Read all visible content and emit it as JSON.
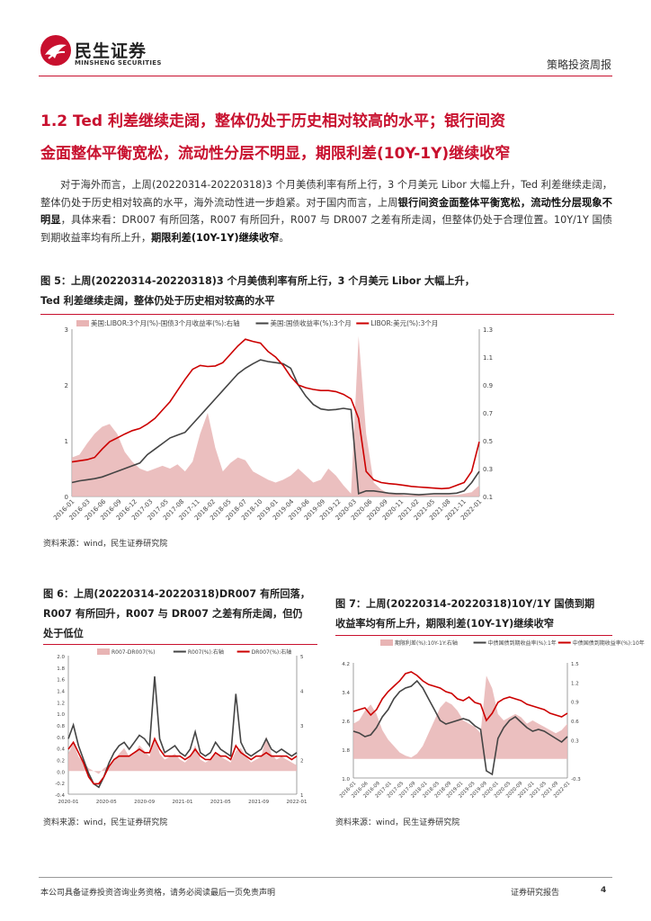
{
  "header": {
    "logo_cn": "民生证券",
    "logo_en": "MINSHENG SECURITIES",
    "report_type": "策略投资周报"
  },
  "section": {
    "heading_line1": "1.2 Ted 利差继续走阔，整体仍处于历史相对较高的水平；银行间资",
    "heading_line2": "金面整体平衡宽松，流动性分层不明显，期限利差(10Y-1Y)继续收窄"
  },
  "paragraph": {
    "p1": "对于海外而言，上周(20220314-20220318)3 个月美债利率有所上行，3 个月美元 Libor 大幅上升，Ted 利差继续走阔，整体仍处于历史相对较高的水平，海外流动性进一步趋紧。对于国内而言，上周",
    "b1": "银行间资金面整体平衡宽松，流动性分层现象不明显",
    "p2": "，具体来看：DR007 有所回落，R007 有所回升，R007 与 DR007 之差有所走阔，但整体仍处于合理位置。10Y/1Y 国债到期收益率均有所上升，",
    "b2": "期限利差(10Y-1Y)继续收窄",
    "p3": "。"
  },
  "fig5": {
    "title_line1": "图 5：上周(20220314-20220318)3 个月美债利率有所上行，3 个月美元 Libor 大幅上升，",
    "title_line2": "Ted 利差继续走阔，整体仍处于历史相对较高的水平",
    "source": "资料来源：wind，民生证券研究院"
  },
  "fig6": {
    "title_line1": "图 6：上周(20220314-20220318)DR007 有所回落，",
    "title_line2": "R007 有所回升，R007 与 DR007 之差有所走阔，但仍",
    "title_line3": "处于低位",
    "source": "资料来源：wind，民生证券研究院"
  },
  "fig7": {
    "title_line1": "图 7：上周(20220314-20220318)10Y/1Y 国债到期",
    "title_line2": "收益率均有所上升，期限利差(10Y-1Y)继续收窄",
    "source": "资料来源：wind，民生证券研究院"
  },
  "footer": {
    "disclaimer": "本公司具备证券投资咨询业务资格，请务必阅读最后一页免责声明",
    "report_label": "证券研究报告",
    "page": "4"
  },
  "colors": {
    "brand_red": "#c8102e",
    "area_pink": "#e8b4b4",
    "line_gray": "#444444",
    "line_red": "#cc0000"
  },
  "chart_data": [
    {
      "type": "line",
      "legend": [
        "美国:LIBOR:3个月(%)-国债3个月收益率(%):右轴",
        "美国:国债收益率(%):3个月",
        "LIBOR:美元(%):3个月"
      ],
      "x_ticks": [
        "2016-01",
        "2016-03",
        "2016-06",
        "2016-09",
        "2016-12",
        "2017-03",
        "2017-05",
        "2017-08",
        "2017-11",
        "2018-02",
        "2018-05",
        "2018-07",
        "2018-10",
        "2019-01",
        "2019-04",
        "2019-06",
        "2019-09",
        "2019-12",
        "2020-03",
        "2020-06",
        "2020-09",
        "2020-11",
        "2021-02",
        "2021-05",
        "2021-08",
        "2021-11",
        "2022-01"
      ],
      "y_left_ticks": [
        "0",
        "1",
        "2",
        "3"
      ],
      "y_right_ticks": [
        "0.1",
        "0.3",
        "0.5",
        "0.7",
        "0.9",
        "1.1",
        "1.3"
      ],
      "ylim_left": [
        0,
        3
      ],
      "ylim_right": [
        0.1,
        1.3
      ],
      "series": [
        {
          "name": "美国:LIBOR:3个月(%)-国债3个月收益率(%):右轴",
          "kind": "area",
          "axis": "right",
          "values": [
            0.38,
            0.4,
            0.48,
            0.55,
            0.6,
            0.62,
            0.55,
            0.42,
            0.35,
            0.3,
            0.28,
            0.3,
            0.32,
            0.3,
            0.33,
            0.28,
            0.35,
            0.55,
            0.7,
            0.45,
            0.28,
            0.34,
            0.38,
            0.36,
            0.28,
            0.25,
            0.22,
            0.2,
            0.22,
            0.25,
            0.3,
            0.25,
            0.2,
            0.22,
            0.3,
            0.25,
            0.18,
            0.12,
            1.25,
            0.55,
            0.2,
            0.15,
            0.12,
            0.12,
            0.11,
            0.11,
            0.11,
            0.11,
            0.11,
            0.11,
            0.11,
            0.11,
            0.12,
            0.13,
            0.18
          ]
        },
        {
          "name": "美国:国债收益率(%):3个月",
          "kind": "line",
          "axis": "left",
          "values": [
            0.25,
            0.28,
            0.3,
            0.32,
            0.35,
            0.4,
            0.45,
            0.5,
            0.55,
            0.6,
            0.75,
            0.85,
            0.95,
            1.05,
            1.1,
            1.15,
            1.3,
            1.45,
            1.6,
            1.75,
            1.9,
            2.05,
            2.2,
            2.3,
            2.38,
            2.45,
            2.42,
            2.4,
            2.38,
            2.3,
            2.0,
            1.8,
            1.65,
            1.57,
            1.55,
            1.56,
            1.58,
            1.56,
            0.05,
            0.1,
            0.1,
            0.08,
            0.06,
            0.05,
            0.05,
            0.04,
            0.03,
            0.04,
            0.05,
            0.05,
            0.05,
            0.06,
            0.1,
            0.25,
            0.45
          ]
        },
        {
          "name": "LIBOR:美元(%):3个月",
          "kind": "line",
          "axis": "left",
          "values": [
            0.62,
            0.64,
            0.66,
            0.7,
            0.85,
            0.98,
            1.05,
            1.12,
            1.18,
            1.22,
            1.3,
            1.4,
            1.55,
            1.7,
            1.9,
            2.1,
            2.28,
            2.35,
            2.33,
            2.34,
            2.4,
            2.55,
            2.7,
            2.82,
            2.78,
            2.75,
            2.6,
            2.5,
            2.35,
            2.15,
            2.0,
            1.95,
            1.92,
            1.9,
            1.9,
            1.88,
            1.83,
            1.75,
            1.4,
            0.45,
            0.3,
            0.25,
            0.23,
            0.22,
            0.2,
            0.18,
            0.17,
            0.16,
            0.15,
            0.14,
            0.15,
            0.2,
            0.25,
            0.45,
            0.98
          ]
        }
      ]
    },
    {
      "type": "line",
      "legend": [
        "R007-DR007(%)",
        "R007(%):右轴",
        "DR007(%):右轴"
      ],
      "x_ticks": [
        "2020-01",
        "2020-05",
        "2020-09",
        "2021-01",
        "2021-05",
        "2021-09",
        "2022-01"
      ],
      "y_left_ticks": [
        "-0.4",
        "-0.2",
        "0.0",
        "0.2",
        "0.4",
        "0.6",
        "0.8",
        "1.0",
        "1.2",
        "1.4",
        "1.6",
        "1.8",
        "2.0"
      ],
      "y_right_ticks": [
        "1",
        "2",
        "3",
        "4",
        "5"
      ],
      "ylim_left": [
        -0.4,
        2.0
      ],
      "ylim_right": [
        1,
        5
      ],
      "series": [
        {
          "name": "R007-DR007(%)",
          "kind": "area",
          "axis": "left",
          "values": [
            0.3,
            0.5,
            0.25,
            0.15,
            0.05,
            0.0,
            -0.05,
            0.05,
            0.1,
            0.2,
            0.3,
            0.4,
            0.25,
            0.3,
            0.45,
            0.35,
            0.25,
            0.6,
            0.3,
            0.2,
            0.25,
            0.3,
            0.2,
            0.15,
            0.25,
            0.45,
            0.2,
            0.15,
            0.2,
            0.3,
            0.25,
            0.2,
            0.15,
            0.35,
            0.4,
            0.25,
            0.15,
            0.2,
            0.25,
            0.6,
            0.3,
            0.2,
            0.25,
            0.2,
            0.15,
            0.1
          ]
        },
        {
          "name": "R007(%):右轴",
          "kind": "line",
          "axis": "right",
          "values": [
            2.6,
            3.0,
            2.4,
            2.0,
            1.6,
            1.3,
            1.2,
            1.5,
            1.9,
            2.2,
            2.4,
            2.5,
            2.3,
            2.5,
            2.7,
            2.6,
            2.4,
            4.4,
            2.6,
            2.2,
            2.3,
            2.4,
            2.2,
            2.1,
            2.3,
            2.8,
            2.2,
            2.1,
            2.2,
            2.5,
            2.3,
            2.2,
            2.1,
            3.9,
            2.5,
            2.2,
            2.1,
            2.2,
            2.3,
            2.6,
            2.3,
            2.2,
            2.3,
            2.2,
            2.1,
            2.2
          ]
        },
        {
          "name": "DR007(%):右轴",
          "kind": "line",
          "axis": "right",
          "values": [
            2.3,
            2.5,
            2.2,
            1.9,
            1.5,
            1.3,
            1.3,
            1.5,
            1.8,
            2.0,
            2.1,
            2.1,
            2.1,
            2.2,
            2.3,
            2.2,
            2.2,
            2.6,
            2.3,
            2.1,
            2.1,
            2.1,
            2.1,
            2.0,
            2.1,
            2.3,
            2.1,
            2.0,
            2.0,
            2.2,
            2.1,
            2.1,
            2.0,
            2.4,
            2.2,
            2.1,
            2.0,
            2.1,
            2.1,
            2.2,
            2.1,
            2.1,
            2.1,
            2.1,
            2.0,
            2.1
          ]
        }
      ]
    },
    {
      "type": "line",
      "legend": [
        "期限利差(%):10Y-1Y:右轴",
        "中债国债到期收益率(%):1年",
        "中债国债到期收益率(%):10年"
      ],
      "x_ticks": [
        "2016-01",
        "2016-06",
        "2016-09",
        "2017-01",
        "2017-05",
        "2017-09",
        "2018-01",
        "2018-05",
        "2018-09",
        "2019-01",
        "2019-05",
        "2019-09",
        "2020-01",
        "2020-05",
        "2020-09",
        "2021-01",
        "2021-05",
        "2021-09",
        "2022-01"
      ],
      "y_left_ticks": [
        "1.0",
        "1.8",
        "2.6",
        "3.4",
        "4.2"
      ],
      "y_right_ticks": [
        "-0.3",
        "0.3",
        "0.6",
        "0.9",
        "1.2",
        "1.5"
      ],
      "ylim_left": [
        1.0,
        4.2
      ],
      "ylim_right": [
        -0.3,
        1.5
      ],
      "series": [
        {
          "name": "期限利差(%):10Y-1Y:右轴",
          "kind": "area",
          "axis": "right",
          "values": [
            0.55,
            0.6,
            0.75,
            0.85,
            0.7,
            0.45,
            0.3,
            0.2,
            0.1,
            0.05,
            0.02,
            0.08,
            0.2,
            0.4,
            0.6,
            0.8,
            0.9,
            0.85,
            0.75,
            0.6,
            0.55,
            0.5,
            0.4,
            1.3,
            1.1,
            0.7,
            0.6,
            0.65,
            0.7,
            0.65,
            0.55,
            0.6,
            0.55,
            0.5,
            0.45,
            0.4,
            0.45,
            0.55
          ]
        },
        {
          "name": "中债国债到期收益率(%):1年",
          "kind": "line",
          "axis": "left",
          "values": [
            2.3,
            2.25,
            2.15,
            2.2,
            2.4,
            2.7,
            2.9,
            3.2,
            3.4,
            3.5,
            3.55,
            3.7,
            3.5,
            3.2,
            2.9,
            2.6,
            2.5,
            2.55,
            2.6,
            2.65,
            2.6,
            2.45,
            2.35,
            1.2,
            1.1,
            2.1,
            2.4,
            2.6,
            2.7,
            2.55,
            2.4,
            2.3,
            2.35,
            2.3,
            2.2,
            2.1,
            2.0,
            2.15
          ]
        },
        {
          "name": "中债国债到期收益率(%):10年",
          "kind": "line",
          "axis": "left",
          "values": [
            2.85,
            2.9,
            2.95,
            2.75,
            2.9,
            3.2,
            3.4,
            3.55,
            3.7,
            3.9,
            3.95,
            3.85,
            3.7,
            3.6,
            3.55,
            3.5,
            3.4,
            3.35,
            3.2,
            3.15,
            3.25,
            3.1,
            3.05,
            2.6,
            2.8,
            3.1,
            3.2,
            3.25,
            3.2,
            3.15,
            3.05,
            3.0,
            2.95,
            2.9,
            2.8,
            2.75,
            2.7,
            2.8
          ]
        }
      ]
    }
  ]
}
